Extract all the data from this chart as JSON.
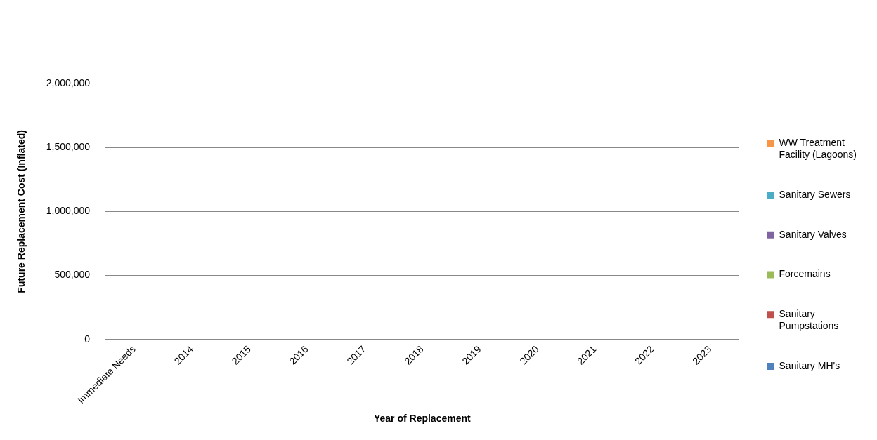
{
  "chart_data": {
    "type": "bar",
    "xlabel": "Year of Replacement",
    "ylabel": "Future Replacement Cost (Inflated)",
    "categories": [
      "Immediate Needs",
      "2014",
      "2015",
      "2016",
      "2017",
      "2018",
      "2019",
      "2020",
      "2021",
      "2022",
      "2023"
    ],
    "series": [
      {
        "name": "Sanitary MH's",
        "color": "#4f81bd",
        "values": [
          0,
          0,
          0,
          0,
          0,
          0,
          0,
          0,
          0,
          0,
          0
        ]
      },
      {
        "name": "Sanitary Pumpstations",
        "color": "#c0504d",
        "values": [
          0,
          0,
          0,
          0,
          0,
          0,
          0,
          0,
          0,
          0,
          0
        ]
      },
      {
        "name": "Forcemains",
        "color": "#9bbb59",
        "values": [
          0,
          0,
          0,
          0,
          0,
          0,
          0,
          0,
          0,
          0,
          0
        ]
      },
      {
        "name": "Sanitary Valves",
        "color": "#8064a2",
        "values": [
          0,
          0,
          0,
          0,
          0,
          0,
          0,
          0,
          0,
          0,
          0
        ]
      },
      {
        "name": "Sanitary Sewers",
        "color": "#4bacc6",
        "values": [
          0,
          0,
          0,
          0,
          0,
          0,
          0,
          0,
          0,
          0,
          0
        ]
      },
      {
        "name": "WW Treatment Facility (Lagoons)",
        "color": "#f79646",
        "values": [
          0,
          0,
          0,
          0,
          0,
          0,
          0,
          0,
          0,
          0,
          0
        ]
      }
    ],
    "ylim": [
      0,
      2000000
    ],
    "yticks": [
      0,
      {
        "value": 500000,
        "label": "500,000"
      },
      {
        "value": 1000000,
        "label": "1,000,000"
      },
      {
        "value": 1500000,
        "label": "1,500,000"
      },
      {
        "value": 2000000,
        "label": "2,000,000"
      }
    ],
    "grid": "y",
    "legend": "right"
  }
}
